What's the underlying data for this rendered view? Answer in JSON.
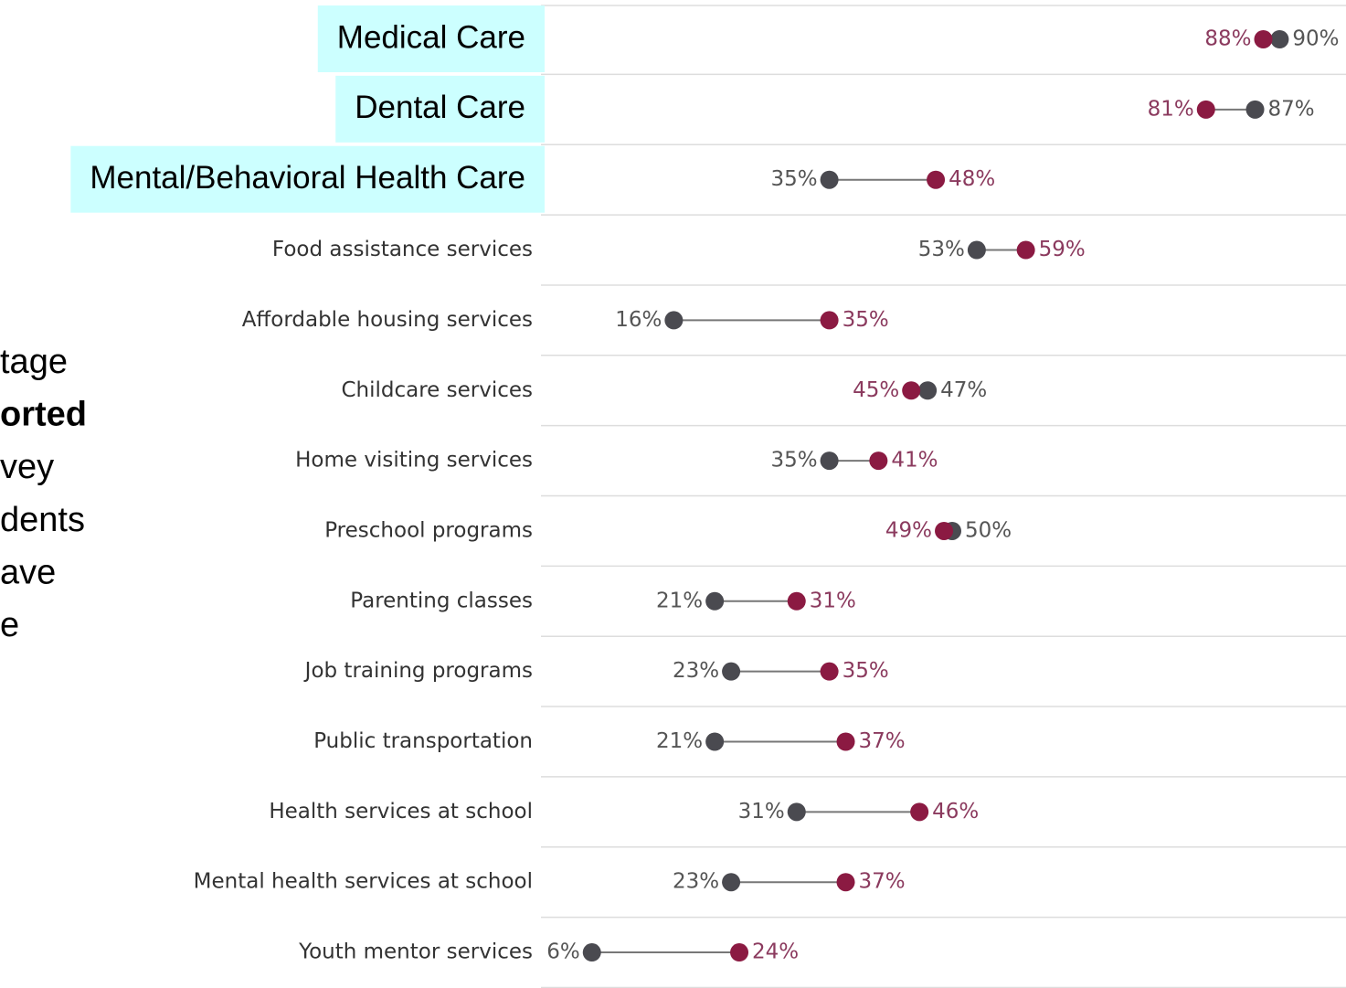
{
  "side_text": [
    "tage",
    "orted",
    "vey",
    "dents",
    "ave",
    "e"
  ],
  "side_bold": [
    1
  ],
  "chart_data": {
    "type": "dumbbell",
    "categories": [
      "Medical Care",
      "Dental Care",
      "Mental/Behavioral Health Care",
      "Food assistance services",
      "Affordable housing services",
      "Childcare services",
      "Home visiting services",
      "Preschool programs",
      "Parenting classes",
      "Job training programs",
      "Public transportation",
      "Health services at school",
      "Mental health services at school",
      "Youth mentor services"
    ],
    "highlight_rows": [
      0,
      1,
      2
    ],
    "highlight_color": "#ccffff",
    "xlim": [
      0,
      100
    ],
    "series": [
      {
        "color": "#4a4a50",
        "label_color": "#555555",
        "values": [
          90,
          87,
          35,
          53,
          16,
          47,
          35,
          50,
          21,
          23,
          21,
          31,
          23,
          6
        ],
        "value_labels": [
          "90%",
          "87%",
          "35%",
          "53%",
          "16%",
          "47%",
          "35%",
          "50%",
          "21%",
          "23%",
          "21%",
          "31%",
          "23%",
          "6%"
        ]
      },
      {
        "color": "#8b1a42",
        "label_color": "#8b3a5e",
        "values": [
          88,
          81,
          48,
          59,
          35,
          45,
          41,
          49,
          31,
          35,
          37,
          46,
          37,
          24
        ],
        "value_labels": [
          "88%",
          "81%",
          "48%",
          "59%",
          "35%",
          "45%",
          "41%",
          "49%",
          "31%",
          "35%",
          "37%",
          "46%",
          "37%",
          "24%"
        ]
      }
    ]
  }
}
